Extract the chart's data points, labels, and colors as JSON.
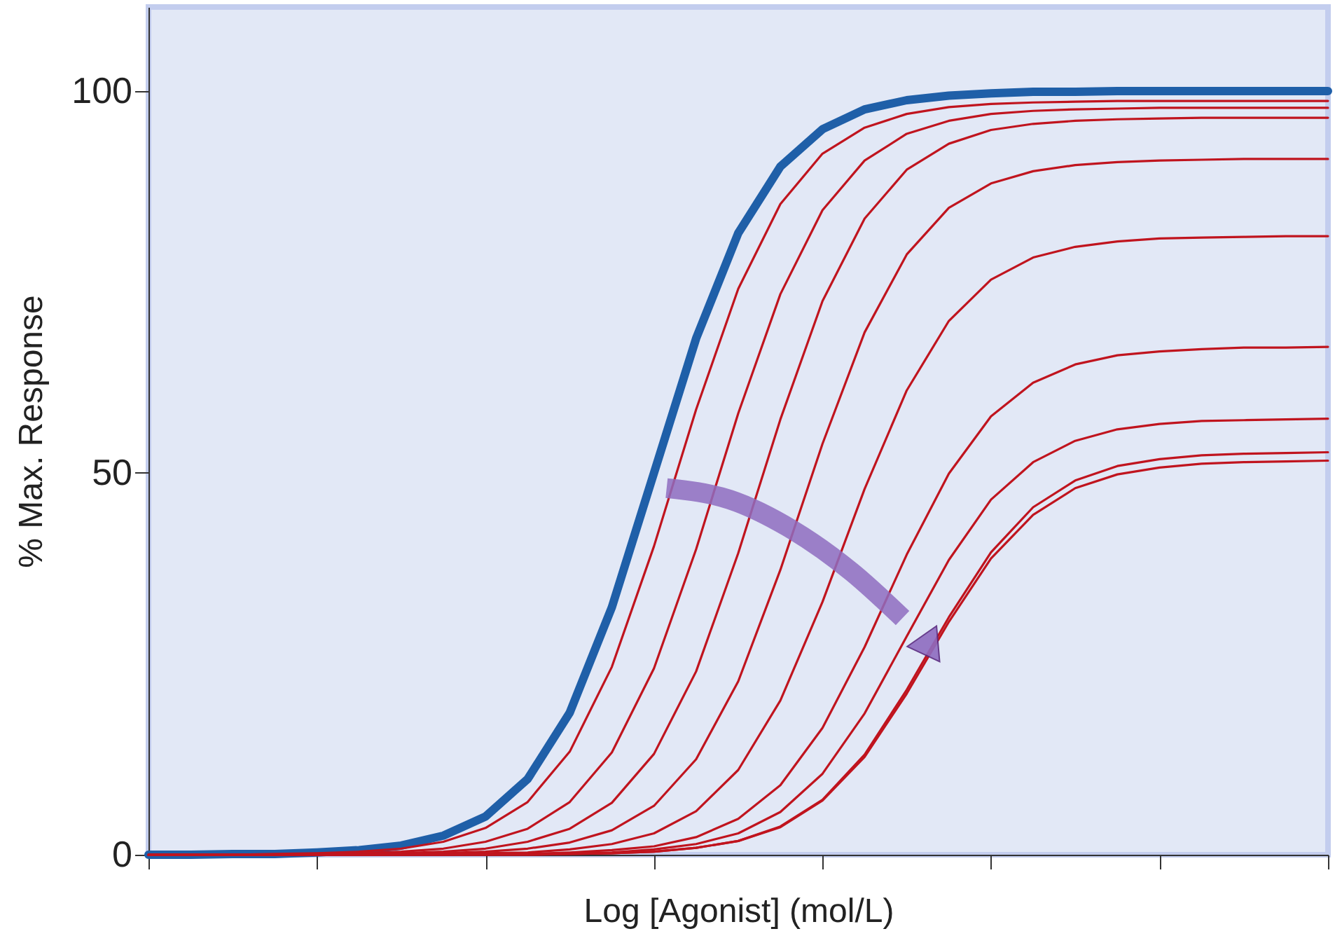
{
  "chart_data": {
    "type": "line",
    "xlabel": "Log [Agonist] (mol/L)",
    "ylabel": "% Max. Response",
    "categories": [
      null,
      null,
      null,
      null,
      null,
      null,
      null,
      null,
      null,
      null,
      null,
      null,
      null,
      null,
      null,
      null,
      null,
      null,
      null,
      null,
      null,
      null,
      null,
      null,
      null,
      null,
      null,
      null,
      null
    ],
    "ylim": [
      0,
      111
    ],
    "yticks": [
      0,
      50,
      100
    ],
    "tick_labels": "y",
    "series": [
      {
        "color": "#1f5fa8",
        "values": [
          0.0,
          0.0,
          0.1,
          0.1,
          0.3,
          0.6,
          1.2,
          2.5,
          5.0,
          9.9,
          18.6,
          32.4,
          50.0,
          67.6,
          81.4,
          90.1,
          95.0,
          97.6,
          98.8,
          99.4,
          99.7,
          99.9,
          99.9,
          100,
          100,
          100,
          100,
          100,
          100
        ]
      },
      {
        "color": "#c0141e",
        "values": [
          0.0,
          0.0,
          0.0,
          0.1,
          0.2,
          0.4,
          0.8,
          1.7,
          3.5,
          6.9,
          13.5,
          24.6,
          40.4,
          58.3,
          74.1,
          85.2,
          91.8,
          95.2,
          97.0,
          97.9,
          98.3,
          98.5,
          98.6,
          98.7,
          98.7,
          98.7,
          98.7,
          98.7,
          98.7
        ]
      },
      {
        "color": "#c0141e",
        "values": [
          0.0,
          0.0,
          0.0,
          0.0,
          0.1,
          0.2,
          0.4,
          0.8,
          1.7,
          3.4,
          6.9,
          13.4,
          24.4,
          40.0,
          57.8,
          73.4,
          84.4,
          90.9,
          94.4,
          96.1,
          97.0,
          97.4,
          97.6,
          97.7,
          97.8,
          97.8,
          97.8,
          97.8,
          97.8
        ]
      },
      {
        "color": "#c0141e",
        "values": [
          0.0,
          0.0,
          0.0,
          0.0,
          0.0,
          0.1,
          0.2,
          0.4,
          0.8,
          1.7,
          3.4,
          6.8,
          13.2,
          24.0,
          39.5,
          57.0,
          72.5,
          83.3,
          89.7,
          93.1,
          94.9,
          95.7,
          96.1,
          96.3,
          96.4,
          96.5,
          96.5,
          96.5,
          96.5
        ]
      },
      {
        "color": "#c0141e",
        "values": [
          0.0,
          0.0,
          0.0,
          0.0,
          0.0,
          0.0,
          0.1,
          0.2,
          0.4,
          0.8,
          1.6,
          3.2,
          6.4,
          12.5,
          22.7,
          37.3,
          53.8,
          68.4,
          78.6,
          84.7,
          87.9,
          89.5,
          90.3,
          90.7,
          90.9,
          91.0,
          91.1,
          91.1,
          91.1
        ]
      },
      {
        "color": "#c0141e",
        "values": [
          0.0,
          0.0,
          0.0,
          0.0,
          0.0,
          0.0,
          0.0,
          0.1,
          0.2,
          0.3,
          0.7,
          1.4,
          2.8,
          5.7,
          11.1,
          20.2,
          33.1,
          47.9,
          60.8,
          69.9,
          75.3,
          78.2,
          79.6,
          80.3,
          80.7,
          80.8,
          80.9,
          81.0,
          81.0
        ]
      },
      {
        "color": "#c0141e",
        "values": [
          0.0,
          0.0,
          0.0,
          0.0,
          0.0,
          0.0,
          0.0,
          0.0,
          0.1,
          0.1,
          0.3,
          0.6,
          1.1,
          2.3,
          4.7,
          9.1,
          16.6,
          27.2,
          39.3,
          49.9,
          57.4,
          61.8,
          64.2,
          65.4,
          65.9,
          66.2,
          66.4,
          66.4,
          66.5
        ]
      },
      {
        "color": "#c0141e",
        "values": [
          0.0,
          0.0,
          0.0,
          0.0,
          0.0,
          0.0,
          0.0,
          0.0,
          0.0,
          0.1,
          0.2,
          0.3,
          0.7,
          1.4,
          2.8,
          5.6,
          10.6,
          18.5,
          28.6,
          38.6,
          46.5,
          51.4,
          54.2,
          55.7,
          56.4,
          56.8,
          56.9,
          57.0,
          57.1
        ]
      },
      {
        "color": "#c0141e",
        "values": [
          0.0,
          0.0,
          0.0,
          0.0,
          0.0,
          0.0,
          0.0,
          0.0,
          0.0,
          0.0,
          0.1,
          0.2,
          0.4,
          0.9,
          1.8,
          3.7,
          7.2,
          13.1,
          21.6,
          31.1,
          39.6,
          45.5,
          49.0,
          50.9,
          51.8,
          52.3,
          52.5,
          52.6,
          52.7
        ]
      },
      {
        "color": "#c0141e",
        "values": [
          0.0,
          0.0,
          0.0,
          0.0,
          0.0,
          0.0,
          0.0,
          0.0,
          0.0,
          0.0,
          0.1,
          0.2,
          0.4,
          0.9,
          1.8,
          3.6,
          7.1,
          12.8,
          21.1,
          30.5,
          38.8,
          44.5,
          48.0,
          49.8,
          50.7,
          51.2,
          51.4,
          51.5,
          51.6
        ]
      }
    ]
  }
}
